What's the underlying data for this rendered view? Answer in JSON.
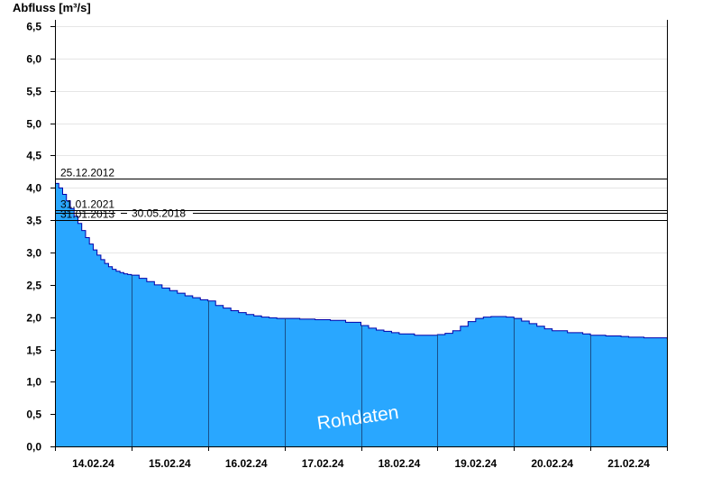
{
  "chart_data": {
    "type": "area",
    "ylabel": "Abfluss [m³/s]",
    "ylim": [
      0,
      6.6
    ],
    "yticks": [
      "0,0",
      "0,5",
      "1,0",
      "1,5",
      "2,0",
      "2,5",
      "3,0",
      "3,5",
      "4,0",
      "4,5",
      "5,0",
      "5,5",
      "6,0",
      "6,5"
    ],
    "ytick_values": [
      0,
      0.5,
      1,
      1.5,
      2,
      2.5,
      3,
      3.5,
      4,
      4.5,
      5,
      5.5,
      6,
      6.5
    ],
    "xlim_days": [
      13.5,
      21.5
    ],
    "xticks": [
      "14.02.24",
      "15.02.24",
      "16.02.24",
      "17.02.24",
      "18.02.24",
      "19.02.24",
      "20.02.24",
      "21.02.24"
    ],
    "day_boundaries": [
      14.5,
      15.5,
      16.5,
      17.5,
      18.5,
      19.5,
      20.5
    ],
    "grid": "horizontal",
    "series": [
      {
        "x": [
          13.5,
          13.55,
          13.6,
          13.65,
          13.7,
          13.75,
          13.8,
          13.85,
          13.9,
          13.95,
          14.0,
          14.05,
          14.1,
          14.15,
          14.2,
          14.25,
          14.3,
          14.35,
          14.4,
          14.45,
          14.5,
          14.6,
          14.7,
          14.8,
          14.9,
          15.0,
          15.1,
          15.2,
          15.3,
          15.4,
          15.5,
          15.6,
          15.7,
          15.8,
          15.9,
          16.0,
          16.1,
          16.2,
          16.3,
          16.4,
          16.5,
          16.7,
          16.9,
          17.1,
          17.3,
          17.5,
          17.6,
          17.7,
          17.8,
          17.9,
          18.0,
          18.2,
          18.4,
          18.5,
          18.6,
          18.7,
          18.8,
          18.9,
          19.0,
          19.1,
          19.2,
          19.3,
          19.4,
          19.5,
          19.6,
          19.7,
          19.8,
          19.9,
          20.0,
          20.2,
          20.4,
          20.5,
          20.7,
          20.9,
          21.0,
          21.2,
          21.5
        ],
        "y": [
          4.07,
          4.0,
          3.9,
          3.8,
          3.68,
          3.56,
          3.45,
          3.34,
          3.23,
          3.13,
          3.04,
          2.96,
          2.89,
          2.83,
          2.78,
          2.74,
          2.71,
          2.69,
          2.67,
          2.66,
          2.65,
          2.6,
          2.55,
          2.5,
          2.45,
          2.41,
          2.37,
          2.33,
          2.3,
          2.27,
          2.25,
          2.18,
          2.14,
          2.1,
          2.07,
          2.04,
          2.02,
          2.0,
          1.99,
          1.98,
          1.98,
          1.97,
          1.96,
          1.95,
          1.92,
          1.87,
          1.83,
          1.8,
          1.78,
          1.76,
          1.74,
          1.72,
          1.72,
          1.73,
          1.75,
          1.79,
          1.86,
          1.93,
          1.98,
          2.0,
          2.01,
          2.01,
          2.0,
          1.98,
          1.94,
          1.9,
          1.86,
          1.82,
          1.79,
          1.76,
          1.74,
          1.72,
          1.71,
          1.7,
          1.69,
          1.68,
          1.67
        ],
        "fill": "#29a7ff",
        "line": "#0000aa"
      }
    ],
    "reference_lines": [
      {
        "date": "25.12.2012",
        "value": 4.14
      },
      {
        "date": "31.01.2021",
        "value": 3.66
      },
      {
        "date": "30.05.2018",
        "value": 3.61
      },
      {
        "date": "31.01.2013",
        "value": 3.5
      }
    ],
    "watermark": "Rohdaten"
  }
}
